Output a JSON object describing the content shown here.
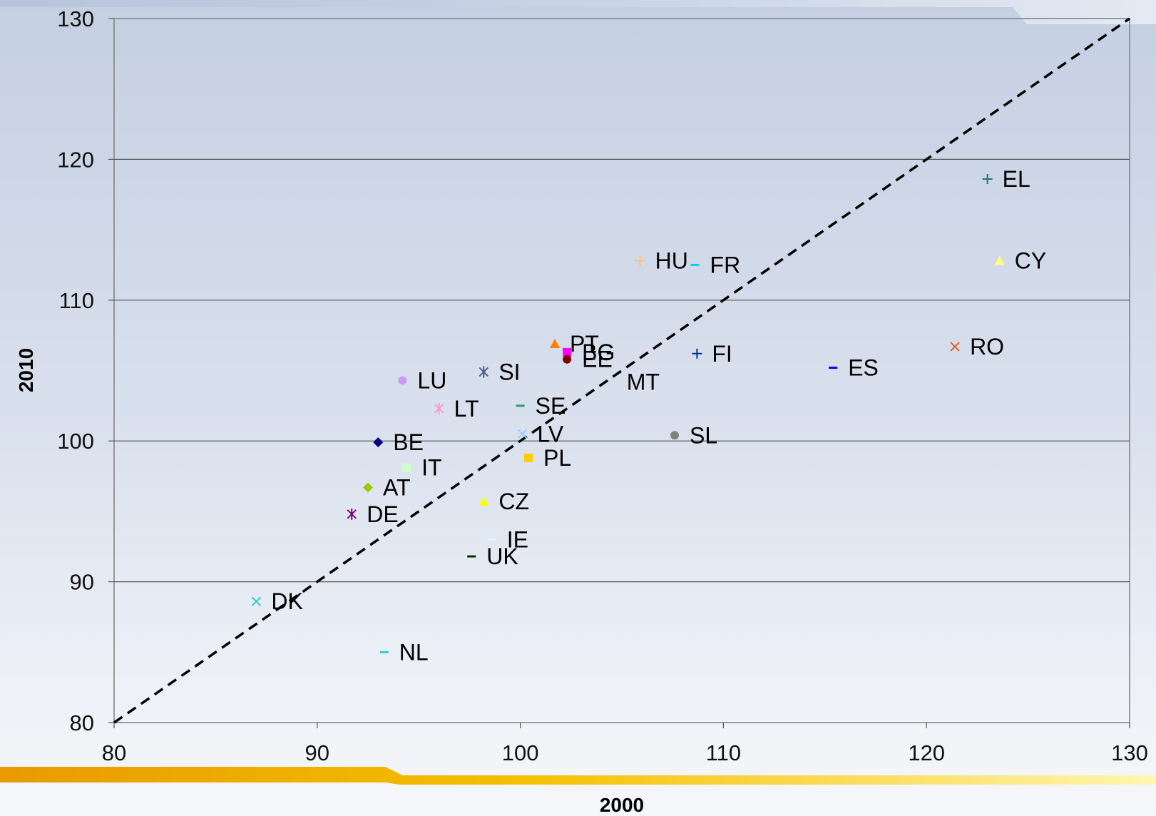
{
  "chart_data": {
    "type": "scatter",
    "title": "",
    "xlabel": "2000",
    "ylabel": "2010",
    "xlim": [
      80,
      130
    ],
    "ylim": [
      80,
      130
    ],
    "x_ticks": [
      80,
      90,
      100,
      110,
      120,
      130
    ],
    "y_ticks": [
      80,
      90,
      100,
      110,
      120,
      130
    ],
    "grid": "horizontal",
    "reference_line": {
      "style": "dashed",
      "from": [
        80,
        80
      ],
      "to": [
        130,
        130
      ],
      "color": "#000000"
    },
    "points": [
      {
        "label": "EL",
        "x": 123.0,
        "y": 118.6,
        "marker": "plus",
        "color": "#1f7a7a"
      },
      {
        "label": "CY",
        "x": 123.6,
        "y": 112.8,
        "marker": "triangle",
        "color": "#ffff80"
      },
      {
        "label": "HU",
        "x": 105.9,
        "y": 112.8,
        "marker": "plus",
        "color": "#ffbf80"
      },
      {
        "label": "FR",
        "x": 108.6,
        "y": 112.5,
        "marker": "dash",
        "color": "#00ccff"
      },
      {
        "label": "RO",
        "x": 121.4,
        "y": 106.7,
        "marker": "x",
        "color": "#e06020"
      },
      {
        "label": "PT",
        "x": 101.7,
        "y": 106.9,
        "marker": "triangle",
        "color": "#ff8000"
      },
      {
        "label": "BG",
        "x": 102.3,
        "y": 106.3,
        "marker": "square",
        "color": "#ff00ff"
      },
      {
        "label": "EE",
        "x": 102.3,
        "y": 105.8,
        "marker": "circle",
        "color": "#800000"
      },
      {
        "label": "FI",
        "x": 108.7,
        "y": 106.2,
        "marker": "plus",
        "color": "#003399"
      },
      {
        "label": "ES",
        "x": 115.4,
        "y": 105.2,
        "marker": "dash",
        "color": "#0000ff"
      },
      {
        "label": "MT",
        "x": 104.5,
        "y": 104.2,
        "marker": "none",
        "color": "#000000"
      },
      {
        "label": "SI",
        "x": 98.2,
        "y": 104.9,
        "marker": "star",
        "color": "#4d5b8a"
      },
      {
        "label": "LU",
        "x": 94.2,
        "y": 104.3,
        "marker": "circle",
        "color": "#cc99ff"
      },
      {
        "label": "LT",
        "x": 96.0,
        "y": 102.3,
        "marker": "star",
        "color": "#ff99cc"
      },
      {
        "label": "SE",
        "x": 100.0,
        "y": 102.5,
        "marker": "dash",
        "color": "#339966"
      },
      {
        "label": "LV",
        "x": 100.1,
        "y": 100.5,
        "marker": "x",
        "color": "#99ccff"
      },
      {
        "label": "SL",
        "x": 107.6,
        "y": 100.4,
        "marker": "circle",
        "color": "#808080"
      },
      {
        "label": "BE",
        "x": 93.0,
        "y": 99.9,
        "marker": "diamond",
        "color": "#000080"
      },
      {
        "label": "PL",
        "x": 100.4,
        "y": 98.8,
        "marker": "square",
        "color": "#ffcc00"
      },
      {
        "label": "IT",
        "x": 94.4,
        "y": 98.1,
        "marker": "square",
        "color": "#ccffcc"
      },
      {
        "label": "AT",
        "x": 92.5,
        "y": 96.7,
        "marker": "diamond",
        "color": "#99cc00"
      },
      {
        "label": "CZ",
        "x": 98.2,
        "y": 95.7,
        "marker": "triangle",
        "color": "#ffff00"
      },
      {
        "label": "DE",
        "x": 91.7,
        "y": 94.8,
        "marker": "star",
        "color": "#800080"
      },
      {
        "label": "IE",
        "x": 98.6,
        "y": 93.0,
        "marker": "dash",
        "color": "#ccffff"
      },
      {
        "label": "UK",
        "x": 97.6,
        "y": 91.8,
        "marker": "dash",
        "color": "#003300"
      },
      {
        "label": "DK",
        "x": 87.0,
        "y": 88.6,
        "marker": "x",
        "color": "#33cccc"
      },
      {
        "label": "NL",
        "x": 93.3,
        "y": 85.0,
        "marker": "dash",
        "color": "#33cccc"
      }
    ]
  }
}
